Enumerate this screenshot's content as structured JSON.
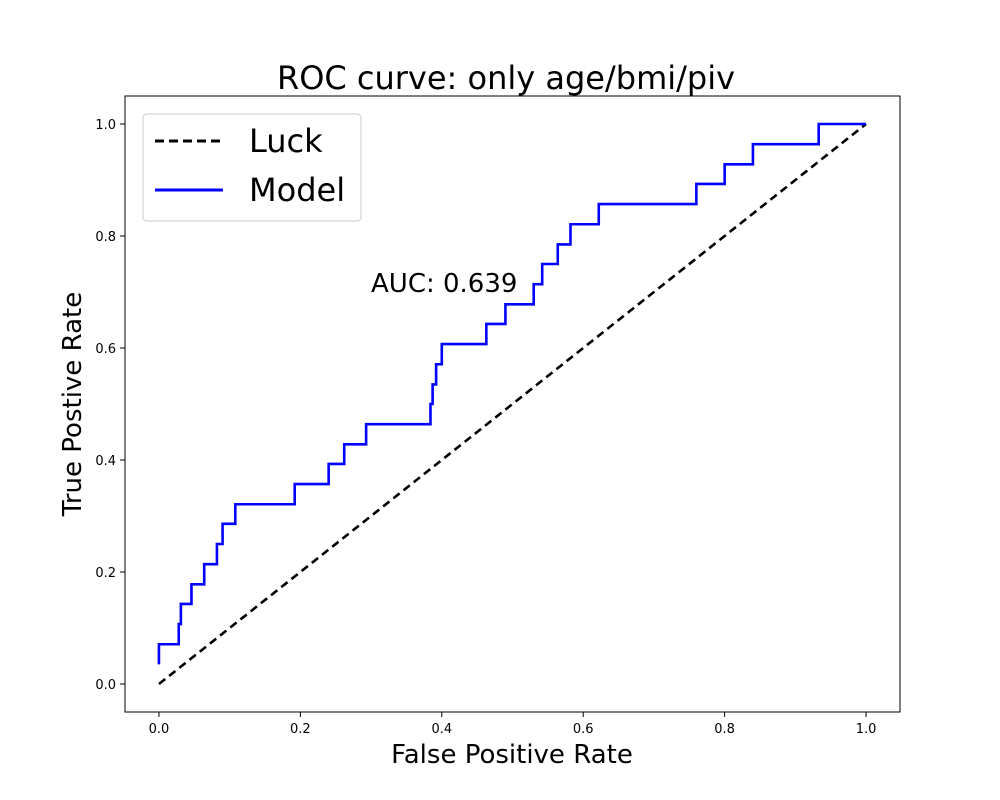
{
  "chart_data": {
    "type": "line",
    "title": "ROC curve: only age/bmi/piv",
    "xlabel": "False Positive Rate",
    "ylabel": "True Postive Rate",
    "xlim": [
      -0.048,
      1.048
    ],
    "ylim": [
      -0.05,
      1.05
    ],
    "x_ticks": [
      0.0,
      0.2,
      0.4,
      0.6,
      0.8,
      1.0
    ],
    "y_ticks": [
      0.0,
      0.2,
      0.4,
      0.6,
      0.8,
      1.0
    ],
    "x_tick_labels": [
      "0.0",
      "0.2",
      "0.4",
      "0.6",
      "0.8",
      "1.0"
    ],
    "y_tick_labels": [
      "0.0",
      "0.2",
      "0.4",
      "0.6",
      "0.8",
      "1.0"
    ],
    "grid": false,
    "legend_position": "top-left",
    "annotation": "AUC: 0.639",
    "series": [
      {
        "name": "Luck",
        "style": "dashed",
        "color": "#000000",
        "x": [
          0.0,
          1.0
        ],
        "y": [
          0.0,
          1.0
        ]
      },
      {
        "name": "Model",
        "style": "solid",
        "color": "#0000ff",
        "x": [
          0.0,
          0.0,
          0.0,
          0.028,
          0.028,
          0.031,
          0.031,
          0.046,
          0.046,
          0.064,
          0.064,
          0.082,
          0.082,
          0.09,
          0.09,
          0.108,
          0.108,
          0.192,
          0.192,
          0.24,
          0.24,
          0.262,
          0.262,
          0.293,
          0.293,
          0.384,
          0.384,
          0.387,
          0.387,
          0.392,
          0.392,
          0.4,
          0.4,
          0.463,
          0.463,
          0.49,
          0.49,
          0.53,
          0.53,
          0.542,
          0.542,
          0.564,
          0.564,
          0.582,
          0.582,
          0.622,
          0.622,
          0.76,
          0.76,
          0.8,
          0.8,
          0.84,
          0.84,
          0.933,
          0.933,
          1.0
        ],
        "y": [
          0.035,
          0.071,
          0.071,
          0.071,
          0.107,
          0.107,
          0.143,
          0.143,
          0.178,
          0.178,
          0.214,
          0.214,
          0.25,
          0.25,
          0.286,
          0.286,
          0.321,
          0.321,
          0.357,
          0.357,
          0.393,
          0.393,
          0.428,
          0.428,
          0.464,
          0.464,
          0.5,
          0.5,
          0.535,
          0.535,
          0.571,
          0.571,
          0.607,
          0.607,
          0.643,
          0.643,
          0.678,
          0.678,
          0.714,
          0.714,
          0.75,
          0.75,
          0.785,
          0.785,
          0.821,
          0.821,
          0.857,
          0.857,
          0.893,
          0.893,
          0.928,
          0.928,
          0.964,
          0.964,
          1.0,
          1.0
        ]
      }
    ]
  }
}
